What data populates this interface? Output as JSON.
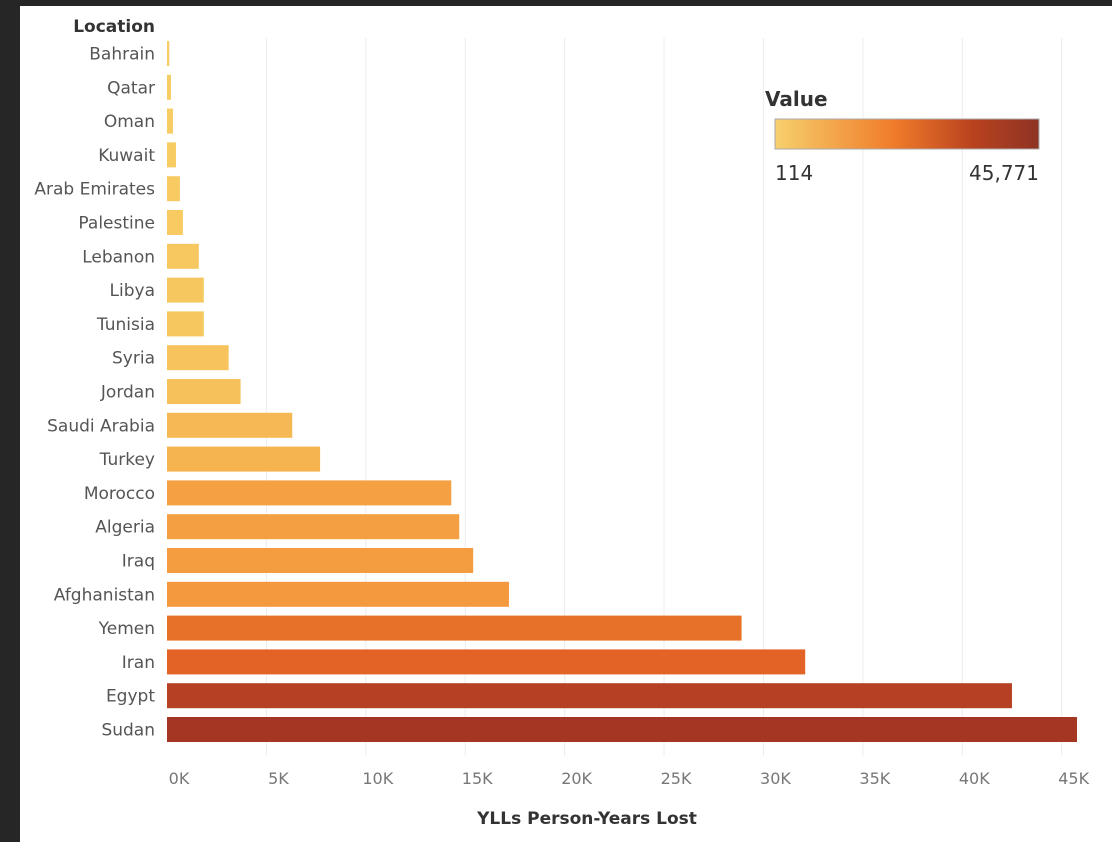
{
  "chart_data": {
    "type": "bar",
    "orientation": "horizontal",
    "row_header": "Location",
    "categories": [
      "Bahrain",
      "Qatar",
      "Oman",
      "Kuwait",
      "Arab Emirates",
      "Palestine",
      "Lebanon",
      "Libya",
      "Tunisia",
      "Syria",
      "Jordan",
      "Saudi Arabia",
      "Turkey",
      "Morocco",
      "Algeria",
      "Iraq",
      "Afghanistan",
      "Yemen",
      "Iran",
      "Egypt",
      "Sudan"
    ],
    "values": [
      114,
      200,
      300,
      450,
      650,
      800,
      1600,
      1850,
      1850,
      3100,
      3700,
      6300,
      7700,
      14300,
      14700,
      15400,
      17200,
      28900,
      32100,
      42500,
      45771
    ],
    "xlabel": "YLLs Person-Years Lost",
    "ylabel": "",
    "xlim": [
      0,
      46500
    ],
    "xticks": [
      0,
      5000,
      10000,
      15000,
      20000,
      25000,
      30000,
      35000,
      40000,
      45000
    ],
    "xtick_labels": [
      "0K",
      "5K",
      "10K",
      "15K",
      "20K",
      "25K",
      "30K",
      "35K",
      "40K",
      "45K"
    ],
    "grid": "vertical",
    "legend": {
      "title": "Value",
      "min_label": "114",
      "max_label": "45,771",
      "placement": "top-right",
      "gradient_colors": [
        "#f6d06c",
        "#f07b2a",
        "#b9421f",
        "#8d3324"
      ]
    },
    "color_scale": {
      "min": 114,
      "max": 45771,
      "stops": [
        "#f7cd63",
        "#f5a748",
        "#f38a31",
        "#de5a22",
        "#a43623"
      ]
    }
  }
}
